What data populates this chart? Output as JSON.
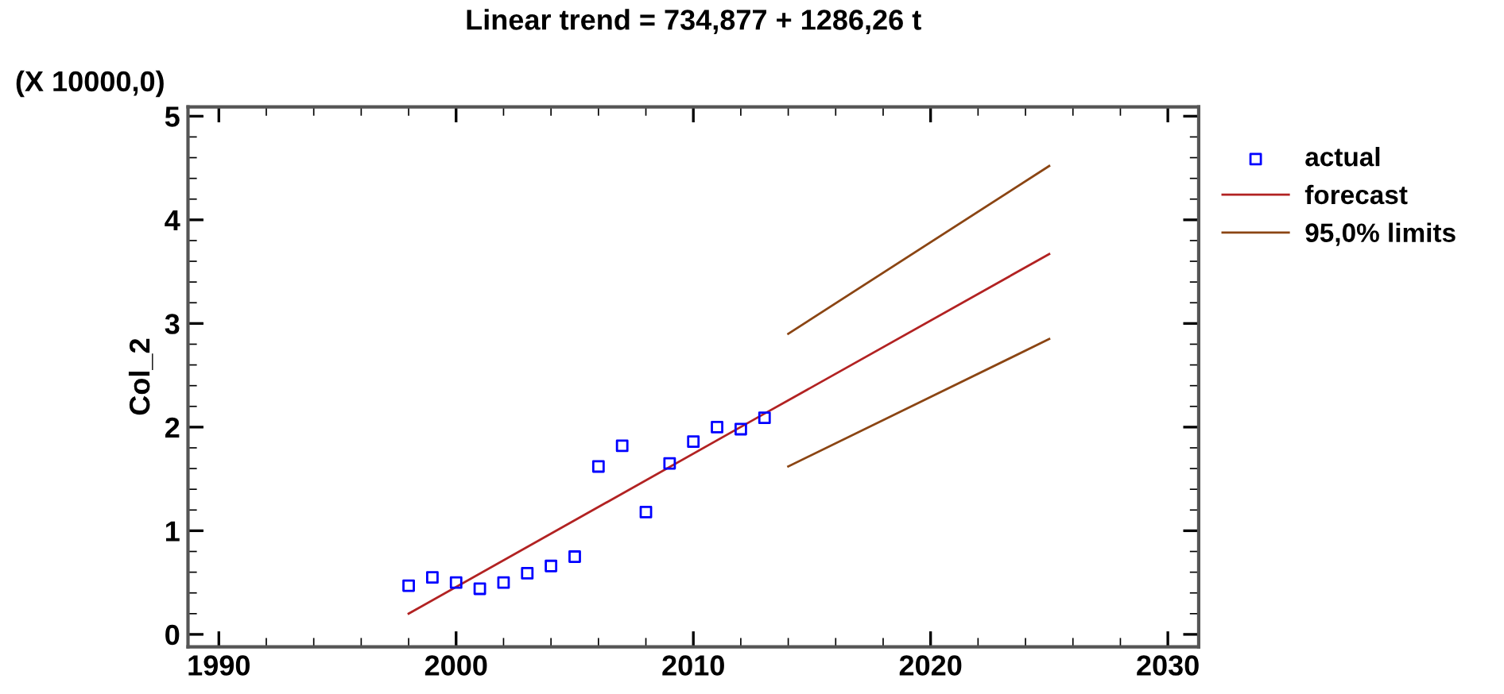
{
  "chart_data": {
    "type": "scatter",
    "title": "Linear trend = 734,877 + 1286,26 t",
    "ylabel": "Col_2",
    "annotations": [
      "(X 10000,0)"
    ],
    "xlim": [
      1988.7,
      2031.3
    ],
    "xticks": [
      1990,
      2000,
      2010,
      2020,
      2030
    ],
    "ylim": [
      -0.12,
      5.09
    ],
    "yticks": [
      0,
      1,
      2,
      3,
      4,
      5
    ],
    "grid": false,
    "legend": "right",
    "series": [
      {
        "name": "actual",
        "marker": "square",
        "color": "#0000ff",
        "x": [
          1998,
          1999,
          2000,
          2001,
          2002,
          2003,
          2004,
          2005,
          2006,
          2007,
          2008,
          2009,
          2010,
          2011,
          2012,
          2013
        ],
        "values": [
          0.47,
          0.55,
          0.5,
          0.44,
          0.5,
          0.59,
          0.66,
          0.75,
          1.62,
          1.82,
          1.18,
          1.65,
          1.86,
          2.0,
          1.98,
          2.09
        ]
      },
      {
        "name": "forecast",
        "type": "line",
        "color": "#b22222",
        "x": [
          1998,
          2013,
          2025
        ],
        "values": [
          0.2,
          2.13,
          3.67
        ]
      },
      {
        "name": "95,0% limits",
        "type": "line",
        "color": "#8b4513",
        "x": [
          2014,
          2025
        ],
        "values": [
          2.9,
          4.52
        ]
      },
      {
        "type": "line",
        "color": "#8b4513",
        "x": [
          2014,
          2025
        ],
        "values": [
          1.62,
          2.85
        ]
      }
    ]
  }
}
